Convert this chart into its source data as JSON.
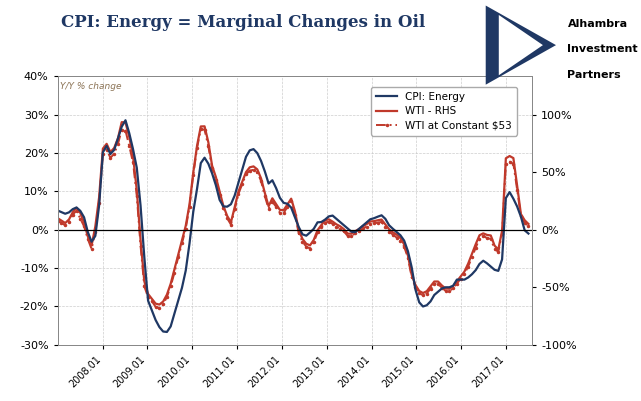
{
  "title": "CPI: Energy = Marginal Changes in Oil",
  "background_color": "#ffffff",
  "plot_bg_color": "#ffffff",
  "grid_color": "#c8c8c8",
  "title_color": "#1f3864",
  "cpi_color": "#1f3864",
  "wti_color": "#c0392b",
  "wti_const_color": "#c0392b",
  "left_ylim": [
    -30,
    40
  ],
  "right_ylim": [
    -100,
    133.33
  ],
  "left_yticks": [
    -30,
    -20,
    -10,
    0,
    10,
    20,
    30,
    40
  ],
  "right_yticks": [
    -100,
    -50,
    0,
    50,
    100
  ],
  "xtick_locs": [
    2008.0,
    2009.0,
    2010.0,
    2011.0,
    2012.0,
    2013.0,
    2014.0,
    2015.0,
    2016.0,
    2017.0
  ],
  "xtick_labels": [
    "2008.01",
    "2009.01",
    "2010.01",
    "2011.01",
    "2012.01",
    "2013.01",
    "2014.01",
    "2015.01",
    "2016.01",
    "2017.01"
  ],
  "legend_entries": [
    "CPI: Energy",
    "WTI - RHS",
    "WTI at Constant $53"
  ],
  "note": "Y/Y % change",
  "logo_lines": [
    "Alhambra",
    "Investment",
    "Partners"
  ]
}
